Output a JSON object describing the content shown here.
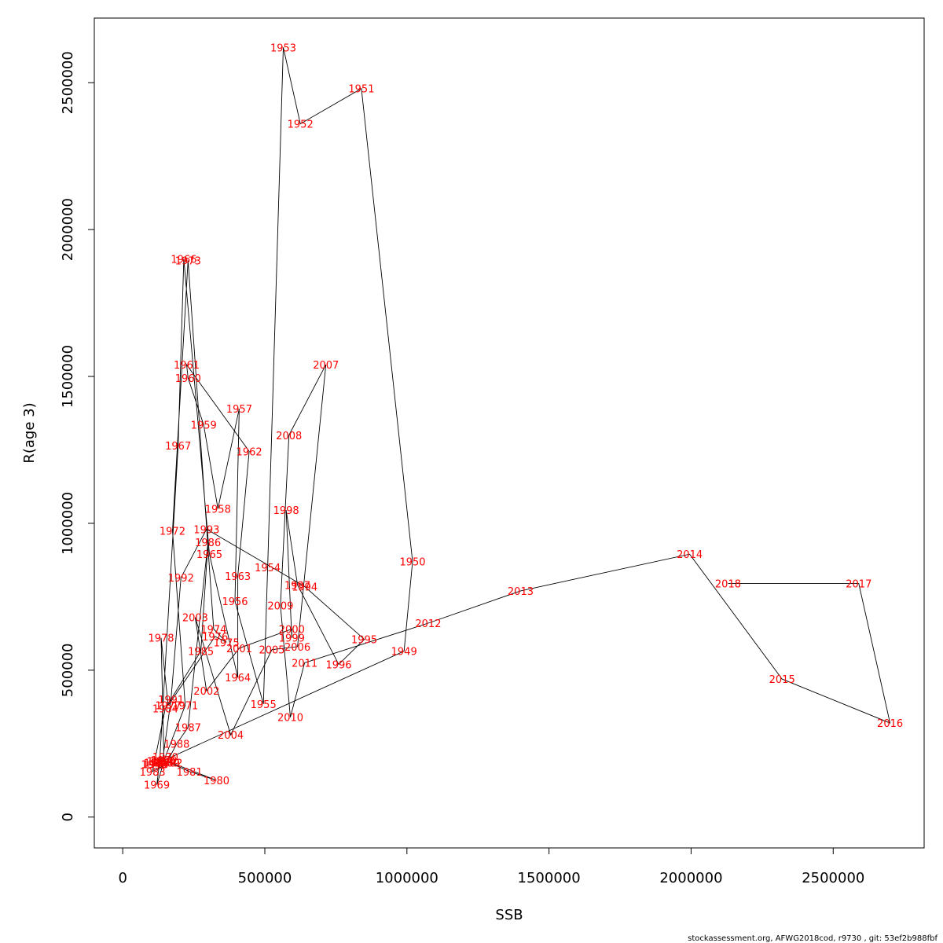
{
  "chart_data": {
    "type": "line",
    "xlabel": "SSB",
    "ylabel": "R(age 3)",
    "xlim": [
      -100000,
      2820000
    ],
    "ylim": [
      -105000,
      2720000
    ],
    "xticks": [
      0,
      500000,
      1000000,
      1500000,
      2000000,
      2500000
    ],
    "xtick_labels": [
      "0",
      "500000",
      "1000000",
      "1500000",
      "2000000",
      "2500000"
    ],
    "yticks": [
      0,
      500000,
      1000000,
      1500000,
      2000000,
      2500000
    ],
    "ytick_labels": [
      "0",
      "500000",
      "1000000",
      "1500000",
      "2000000",
      "2500000"
    ],
    "grid": false,
    "legend": "none",
    "line_color": "#000000",
    "label_color": "#ff0000",
    "points": [
      {
        "year": "1946",
        "x": 110000,
        "y": 180000
      },
      {
        "year": "1947",
        "x": 120000,
        "y": 185000
      },
      {
        "year": "1948",
        "x": 115000,
        "y": 180000
      },
      {
        "year": "1949",
        "x": 990000,
        "y": 565000
      },
      {
        "year": "1950",
        "x": 1020000,
        "y": 870000
      },
      {
        "year": "1951",
        "x": 840000,
        "y": 2480000
      },
      {
        "year": "1952",
        "x": 625000,
        "y": 2360000
      },
      {
        "year": "1953",
        "x": 565000,
        "y": 2620000
      },
      {
        "year": "1954",
        "x": 510000,
        "y": 850000
      },
      {
        "year": "1955",
        "x": 495000,
        "y": 385000
      },
      {
        "year": "1956",
        "x": 395000,
        "y": 735000
      },
      {
        "year": "1957",
        "x": 410000,
        "y": 1390000
      },
      {
        "year": "1958",
        "x": 335000,
        "y": 1050000
      },
      {
        "year": "1959",
        "x": 285000,
        "y": 1335000
      },
      {
        "year": "1960",
        "x": 230000,
        "y": 1495000
      },
      {
        "year": "1961",
        "x": 225000,
        "y": 1540000
      },
      {
        "year": "1962",
        "x": 445000,
        "y": 1245000
      },
      {
        "year": "1963",
        "x": 405000,
        "y": 820000
      },
      {
        "year": "1964",
        "x": 405000,
        "y": 475000
      },
      {
        "year": "1965",
        "x": 305000,
        "y": 895000
      },
      {
        "year": "1966",
        "x": 215000,
        "y": 1900000
      },
      {
        "year": "1967",
        "x": 195000,
        "y": 1265000
      },
      {
        "year": "1968",
        "x": 130000,
        "y": 190000
      },
      {
        "year": "1969",
        "x": 120000,
        "y": 110000
      },
      {
        "year": "1970",
        "x": 150000,
        "y": 205000
      },
      {
        "year": "1971",
        "x": 220000,
        "y": 380000
      },
      {
        "year": "1972",
        "x": 175000,
        "y": 975000
      },
      {
        "year": "1973",
        "x": 230000,
        "y": 1895000
      },
      {
        "year": "1974",
        "x": 320000,
        "y": 640000
      },
      {
        "year": "1975",
        "x": 365000,
        "y": 595000
      },
      {
        "year": "1976",
        "x": 325000,
        "y": 615000
      },
      {
        "year": "1977",
        "x": 160000,
        "y": 380000
      },
      {
        "year": "1978",
        "x": 135000,
        "y": 610000
      },
      {
        "year": "1979",
        "x": 145000,
        "y": 195000
      },
      {
        "year": "1980",
        "x": 330000,
        "y": 125000
      },
      {
        "year": "1981",
        "x": 235000,
        "y": 155000
      },
      {
        "year": "1982",
        "x": 165000,
        "y": 185000
      },
      {
        "year": "1983",
        "x": 105000,
        "y": 155000
      },
      {
        "year": "1984",
        "x": 150000,
        "y": 370000
      },
      {
        "year": "1985",
        "x": 275000,
        "y": 565000
      },
      {
        "year": "1986",
        "x": 300000,
        "y": 935000
      },
      {
        "year": "1987",
        "x": 230000,
        "y": 305000
      },
      {
        "year": "1988",
        "x": 190000,
        "y": 250000
      },
      {
        "year": "1989",
        "x": 155000,
        "y": 185000
      },
      {
        "year": "1990",
        "x": 140000,
        "y": 190000
      },
      {
        "year": "1991",
        "x": 170000,
        "y": 400000
      },
      {
        "year": "1992",
        "x": 205000,
        "y": 815000
      },
      {
        "year": "1993",
        "x": 295000,
        "y": 980000
      },
      {
        "year": "1994",
        "x": 640000,
        "y": 785000
      },
      {
        "year": "1995",
        "x": 850000,
        "y": 605000
      },
      {
        "year": "1996",
        "x": 760000,
        "y": 520000
      },
      {
        "year": "1997",
        "x": 615000,
        "y": 790000
      },
      {
        "year": "1998",
        "x": 575000,
        "y": 1045000
      },
      {
        "year": "1999",
        "x": 595000,
        "y": 610000
      },
      {
        "year": "2000",
        "x": 595000,
        "y": 640000
      },
      {
        "year": "2001",
        "x": 410000,
        "y": 575000
      },
      {
        "year": "2002",
        "x": 295000,
        "y": 430000
      },
      {
        "year": "2003",
        "x": 255000,
        "y": 680000
      },
      {
        "year": "2004",
        "x": 380000,
        "y": 280000
      },
      {
        "year": "2005",
        "x": 525000,
        "y": 570000
      },
      {
        "year": "2006",
        "x": 615000,
        "y": 580000
      },
      {
        "year": "2007",
        "x": 715000,
        "y": 1540000
      },
      {
        "year": "2008",
        "x": 585000,
        "y": 1300000
      },
      {
        "year": "2009",
        "x": 555000,
        "y": 720000
      },
      {
        "year": "2010",
        "x": 590000,
        "y": 340000
      },
      {
        "year": "2011",
        "x": 640000,
        "y": 525000
      },
      {
        "year": "2012",
        "x": 1075000,
        "y": 660000
      },
      {
        "year": "2013",
        "x": 1400000,
        "y": 770000
      },
      {
        "year": "2014",
        "x": 1995000,
        "y": 895000
      },
      {
        "year": "2015",
        "x": 2320000,
        "y": 470000
      },
      {
        "year": "2016",
        "x": 2700000,
        "y": 320000
      },
      {
        "year": "2017",
        "x": 2590000,
        "y": 795000
      },
      {
        "year": "2018",
        "x": 2130000,
        "y": 795000
      }
    ]
  },
  "footer": "stockassessment.org, AFWG2018cod, r9730 , git: 53ef2b988fbf"
}
